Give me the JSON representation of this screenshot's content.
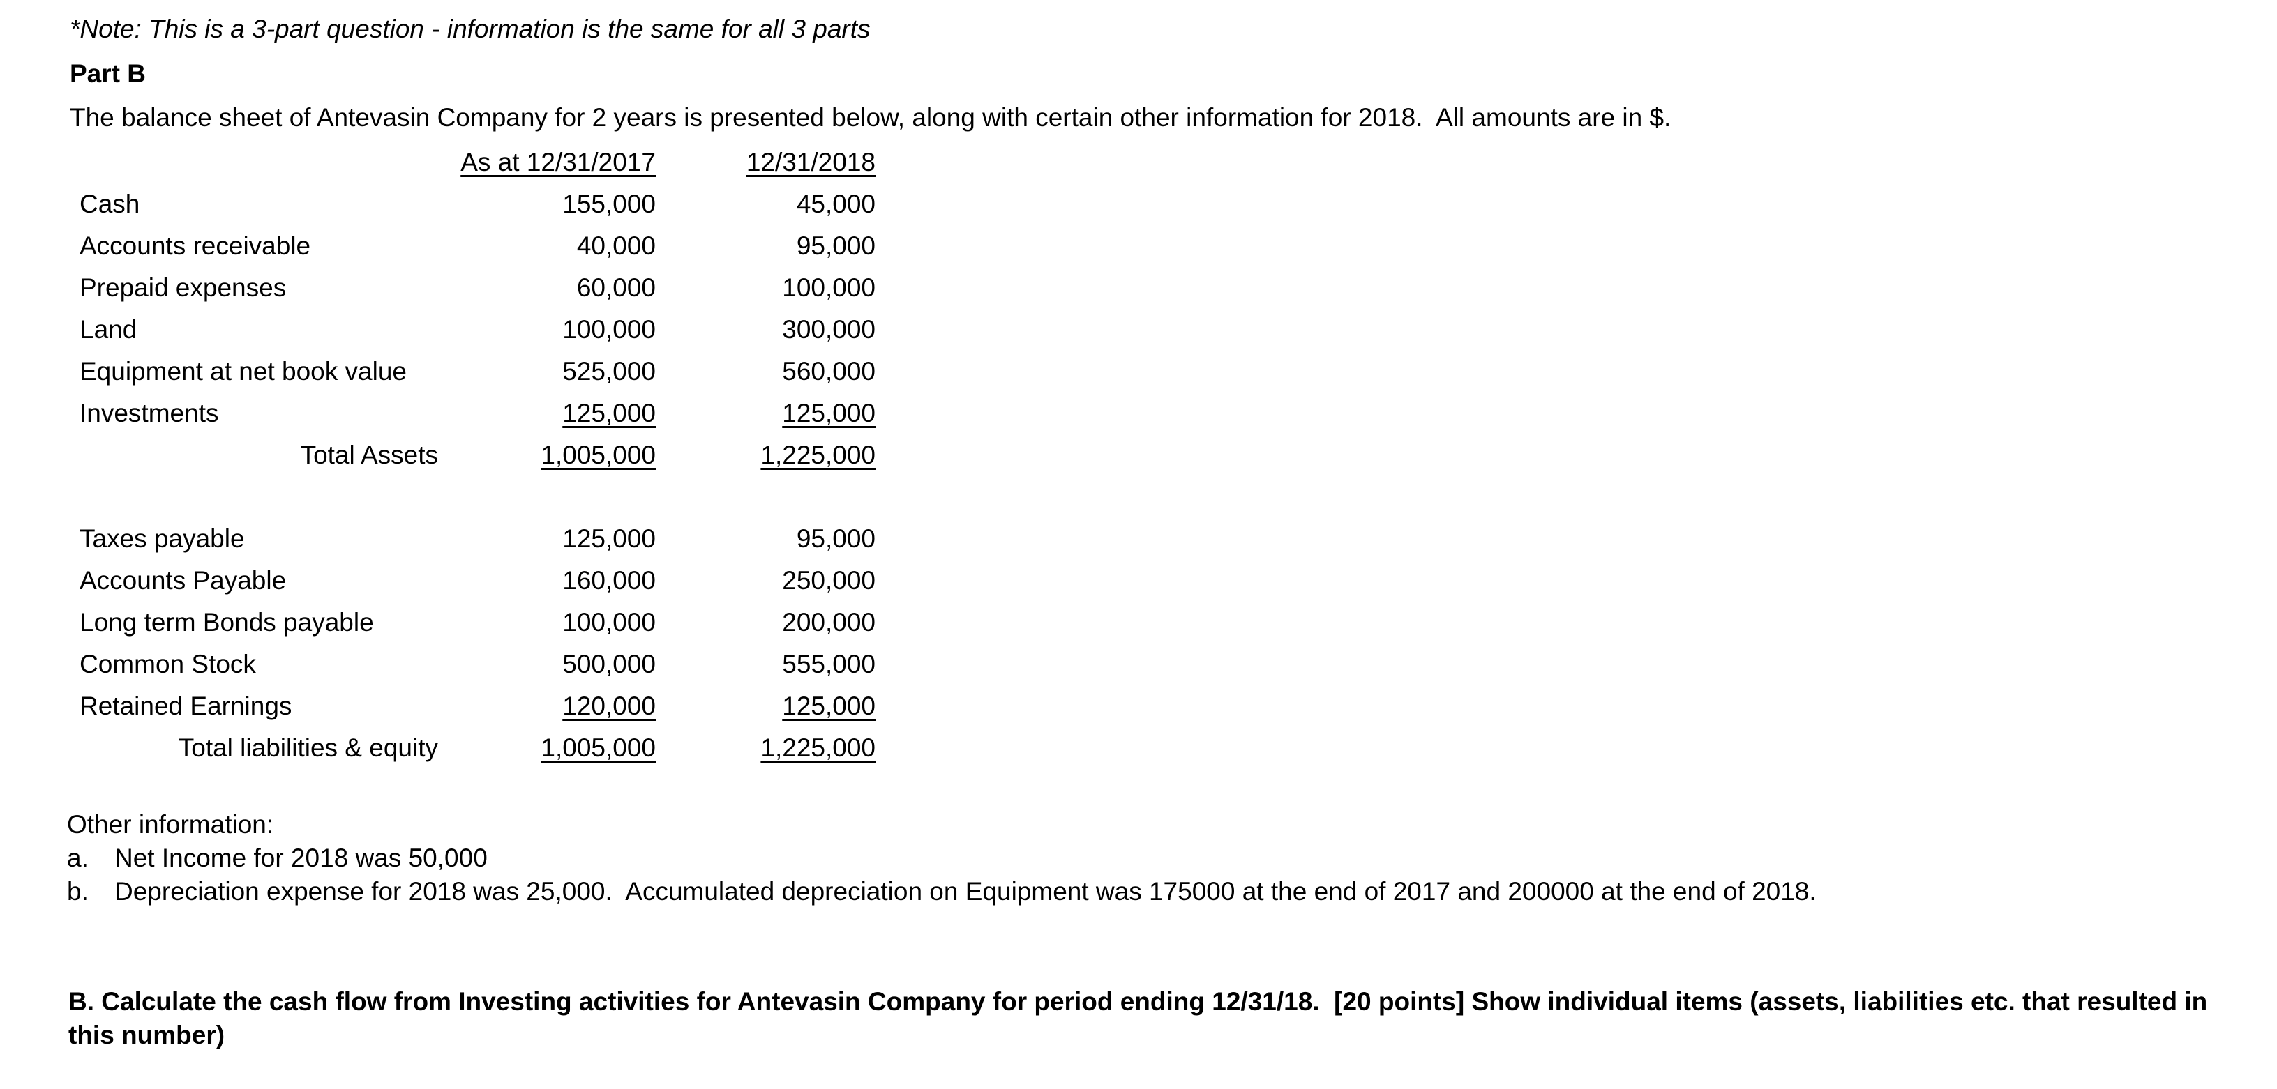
{
  "page": {
    "note": "*Note: This is a 3-part question - information is the same for all 3 parts",
    "part_label": "Part B",
    "intro": "The balance sheet of Antevasin Company for 2 years is presented below, along with certain other information for 2018.  All amounts are in $."
  },
  "balance_sheet": {
    "col_headers": [
      "As at 12/31/2017",
      "12/31/2018"
    ],
    "assets": {
      "rows": [
        {
          "label": "Cash",
          "y2017": "155,000",
          "y2018": "45,000"
        },
        {
          "label": "Accounts receivable",
          "y2017": "40,000",
          "y2018": "95,000"
        },
        {
          "label": "Prepaid expenses",
          "y2017": "60,000",
          "y2018": "100,000"
        },
        {
          "label": "Land",
          "y2017": "100,000",
          "y2018": "300,000"
        },
        {
          "label": "Equipment at net book value",
          "y2017": "525,000",
          "y2018": "560,000"
        },
        {
          "label": "Investments",
          "y2017": "125,000",
          "y2018": "125,000"
        }
      ],
      "total": {
        "label": "Total Assets",
        "y2017": "1,005,000",
        "y2018": "1,225,000"
      }
    },
    "liabilities_equity": {
      "rows": [
        {
          "label": "Taxes payable",
          "y2017": "125,000",
          "y2018": "95,000"
        },
        {
          "label": "Accounts Payable",
          "y2017": "160,000",
          "y2018": "250,000"
        },
        {
          "label": "Long term Bonds payable",
          "y2017": "100,000",
          "y2018": "200,000"
        },
        {
          "label": "Common Stock",
          "y2017": "500,000",
          "y2018": "555,000"
        },
        {
          "label": "Retained Earnings",
          "y2017": "120,000",
          "y2018": "125,000"
        }
      ],
      "total": {
        "label": "Total liabilities & equity",
        "y2017": "1,005,000",
        "y2018": "1,225,000"
      }
    }
  },
  "other_information": {
    "heading": "Other information:",
    "items": [
      {
        "marker": "a.",
        "text": "Net Income for 2018 was 50,000"
      },
      {
        "marker": "b.",
        "text": "Depreciation expense for 2018 was 25,000.  Accumulated depreciation on Equipment was 175000 at the end of 2017 and 200000 at the end of 2018."
      }
    ]
  },
  "question": {
    "text": "B. Calculate the cash flow from Investing activities for Antevasin Company for period ending 12/31/18.  [20 points] Show individual items (assets, liabilities etc. that resulted in this number)"
  }
}
